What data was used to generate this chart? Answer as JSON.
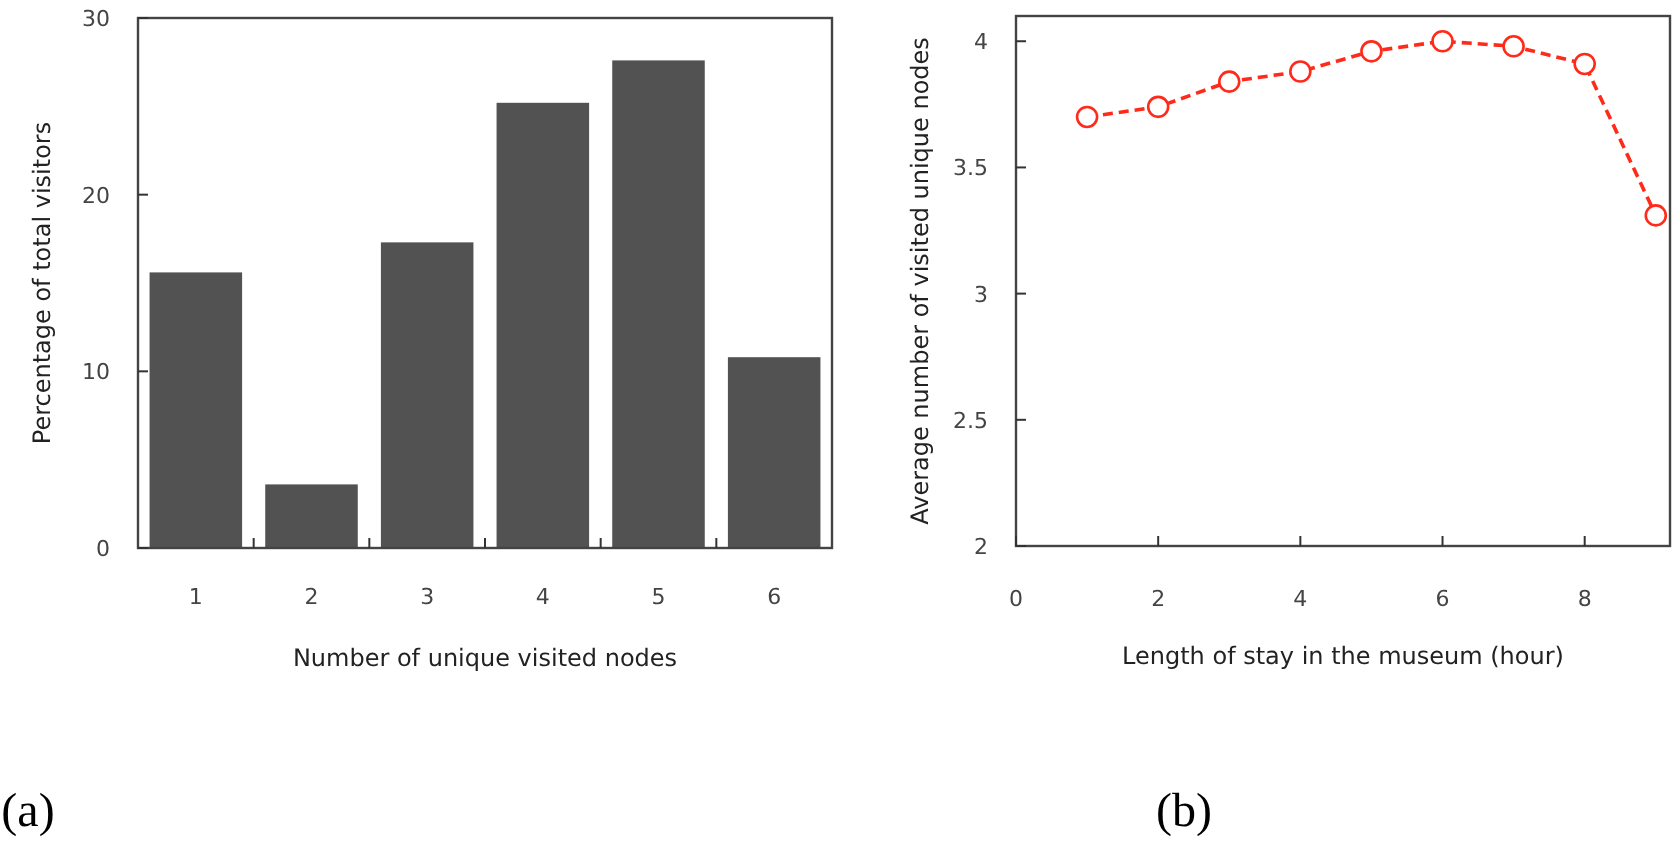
{
  "chart_data": [
    {
      "type": "bar",
      "xlabel": "Number of unique visited nodes",
      "ylabel": "Percentage of total visitors",
      "categories": [
        "1",
        "2",
        "3",
        "4",
        "5",
        "6"
      ],
      "values": [
        15.6,
        3.6,
        17.3,
        25.2,
        27.6,
        10.8
      ],
      "color": "#525252",
      "ylim": [
        0,
        30
      ],
      "yticks": [
        0,
        10,
        20,
        30
      ],
      "annotations": [
        "(a)"
      ]
    },
    {
      "type": "line",
      "xlabel": "Length of stay in the museum (hour)",
      "ylabel": "Average number of visited unique nodes",
      "x": [
        1,
        2,
        3,
        4,
        5,
        6,
        7,
        8,
        9
      ],
      "series": [
        {
          "color": "#ff2a1a",
          "values": [
            3.7,
            3.74,
            3.84,
            3.88,
            3.96,
            4.0,
            3.98,
            3.91,
            3.31
          ]
        }
      ],
      "xlim": [
        0,
        9.2
      ],
      "xticks": [
        0,
        2,
        4,
        6,
        8
      ],
      "ylim": [
        2,
        4.1
      ],
      "yticks": [
        2,
        2.5,
        3,
        3.5,
        4
      ],
      "marker": "circle",
      "line_style": "dashed",
      "annotations": [
        "(b)"
      ]
    }
  ]
}
